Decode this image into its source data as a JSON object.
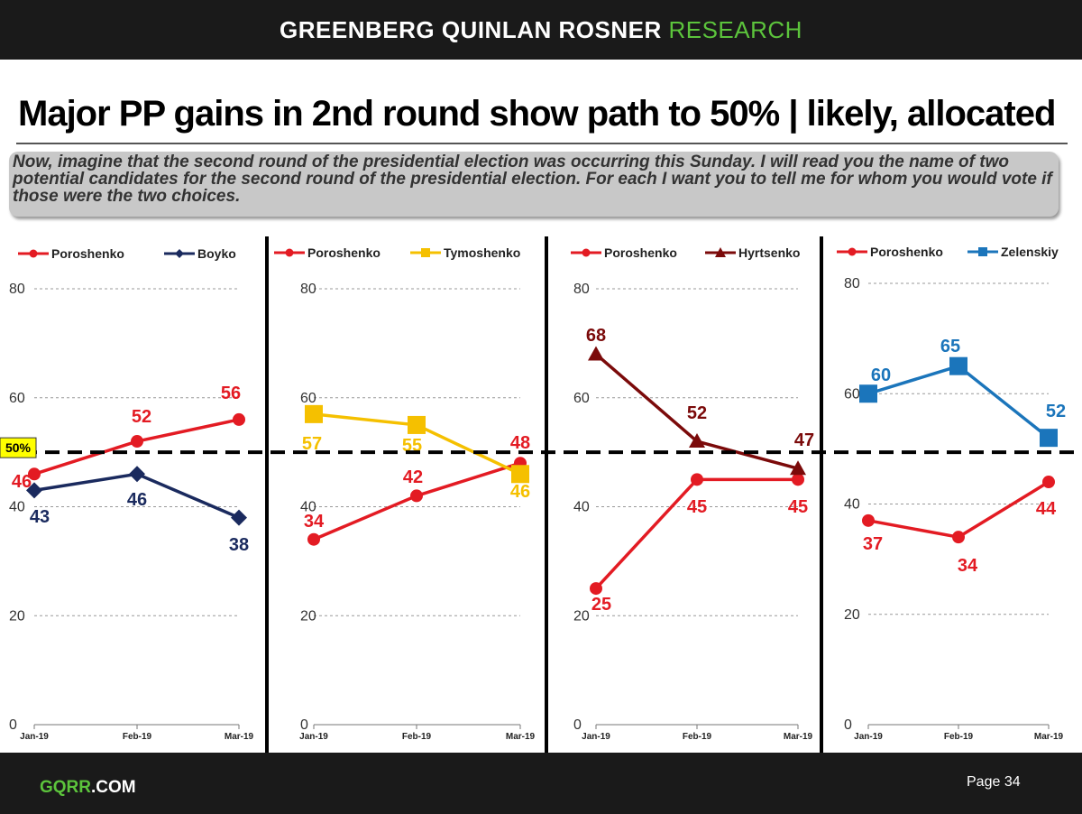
{
  "header": {
    "brand_primary": "GREENBERG QUINLAN ROSNER",
    "brand_secondary": "RESEARCH"
  },
  "title": "Major PP gains in 2nd round show path to 50% | likely, allocated",
  "question": "Now, imagine that the second round of the presidential election was occurring this Sunday. I will read you the name of two potential candidates for the second round of the presidential election. For each I want you to tell me for whom you would vote if those were the two choices.",
  "footer": {
    "site_green": "GQRR",
    "site_white": ".COM",
    "page": "Page 34"
  },
  "colors": {
    "poroshenko": "#e31b23",
    "boyko": "#1a2a5e",
    "tymoshenko": "#f5c000",
    "hyrtsenko": "#7b0a0a",
    "zelenskiy": "#1b75bb",
    "fifty_badge": "#ffff00"
  },
  "chart_data": [
    {
      "type": "line",
      "categories": [
        "Jan-19",
        "Feb-19",
        "Mar-19"
      ],
      "y_ticks": [
        0,
        20,
        40,
        60,
        80
      ],
      "ylim": [
        0,
        80
      ],
      "reference_line": {
        "value": 50,
        "label": "50%"
      },
      "series": [
        {
          "name": "Poroshenko",
          "values": [
            46,
            52,
            56
          ],
          "marker": "circle",
          "color": "#e31b23"
        },
        {
          "name": "Boyko",
          "values": [
            43,
            46,
            38
          ],
          "marker": "diamond",
          "color": "#1a2a5e"
        }
      ]
    },
    {
      "type": "line",
      "categories": [
        "Jan-19",
        "Feb-19",
        "Mar-19"
      ],
      "y_ticks": [
        0,
        20,
        40,
        60,
        80
      ],
      "ylim": [
        0,
        80
      ],
      "reference_line": {
        "value": 50
      },
      "series": [
        {
          "name": "Poroshenko",
          "values": [
            34,
            42,
            48
          ],
          "marker": "circle",
          "color": "#e31b23"
        },
        {
          "name": "Tymoshenko",
          "values": [
            57,
            55,
            46
          ],
          "marker": "square",
          "color": "#f5c000"
        }
      ]
    },
    {
      "type": "line",
      "categories": [
        "Jan-19",
        "Feb-19",
        "Mar-19"
      ],
      "y_ticks": [
        0,
        20,
        40,
        60,
        80
      ],
      "ylim": [
        0,
        80
      ],
      "reference_line": {
        "value": 50
      },
      "series": [
        {
          "name": "Poroshenko",
          "values": [
            25,
            45,
            45
          ],
          "marker": "circle",
          "color": "#e31b23"
        },
        {
          "name": "Hyrtsenko",
          "values": [
            68,
            52,
            47
          ],
          "marker": "triangle",
          "color": "#7b0a0a"
        }
      ]
    },
    {
      "type": "line",
      "categories": [
        "Jan-19",
        "Feb-19",
        "Mar-19"
      ],
      "y_ticks": [
        0,
        20,
        40,
        60,
        80
      ],
      "ylim": [
        0,
        80
      ],
      "reference_line": {
        "value": 50
      },
      "series": [
        {
          "name": "Poroshenko",
          "values": [
            37,
            34,
            44
          ],
          "marker": "circle",
          "color": "#e31b23"
        },
        {
          "name": "Zelenskiy",
          "values": [
            60,
            65,
            52
          ],
          "marker": "square",
          "color": "#1b75bb"
        }
      ]
    }
  ]
}
